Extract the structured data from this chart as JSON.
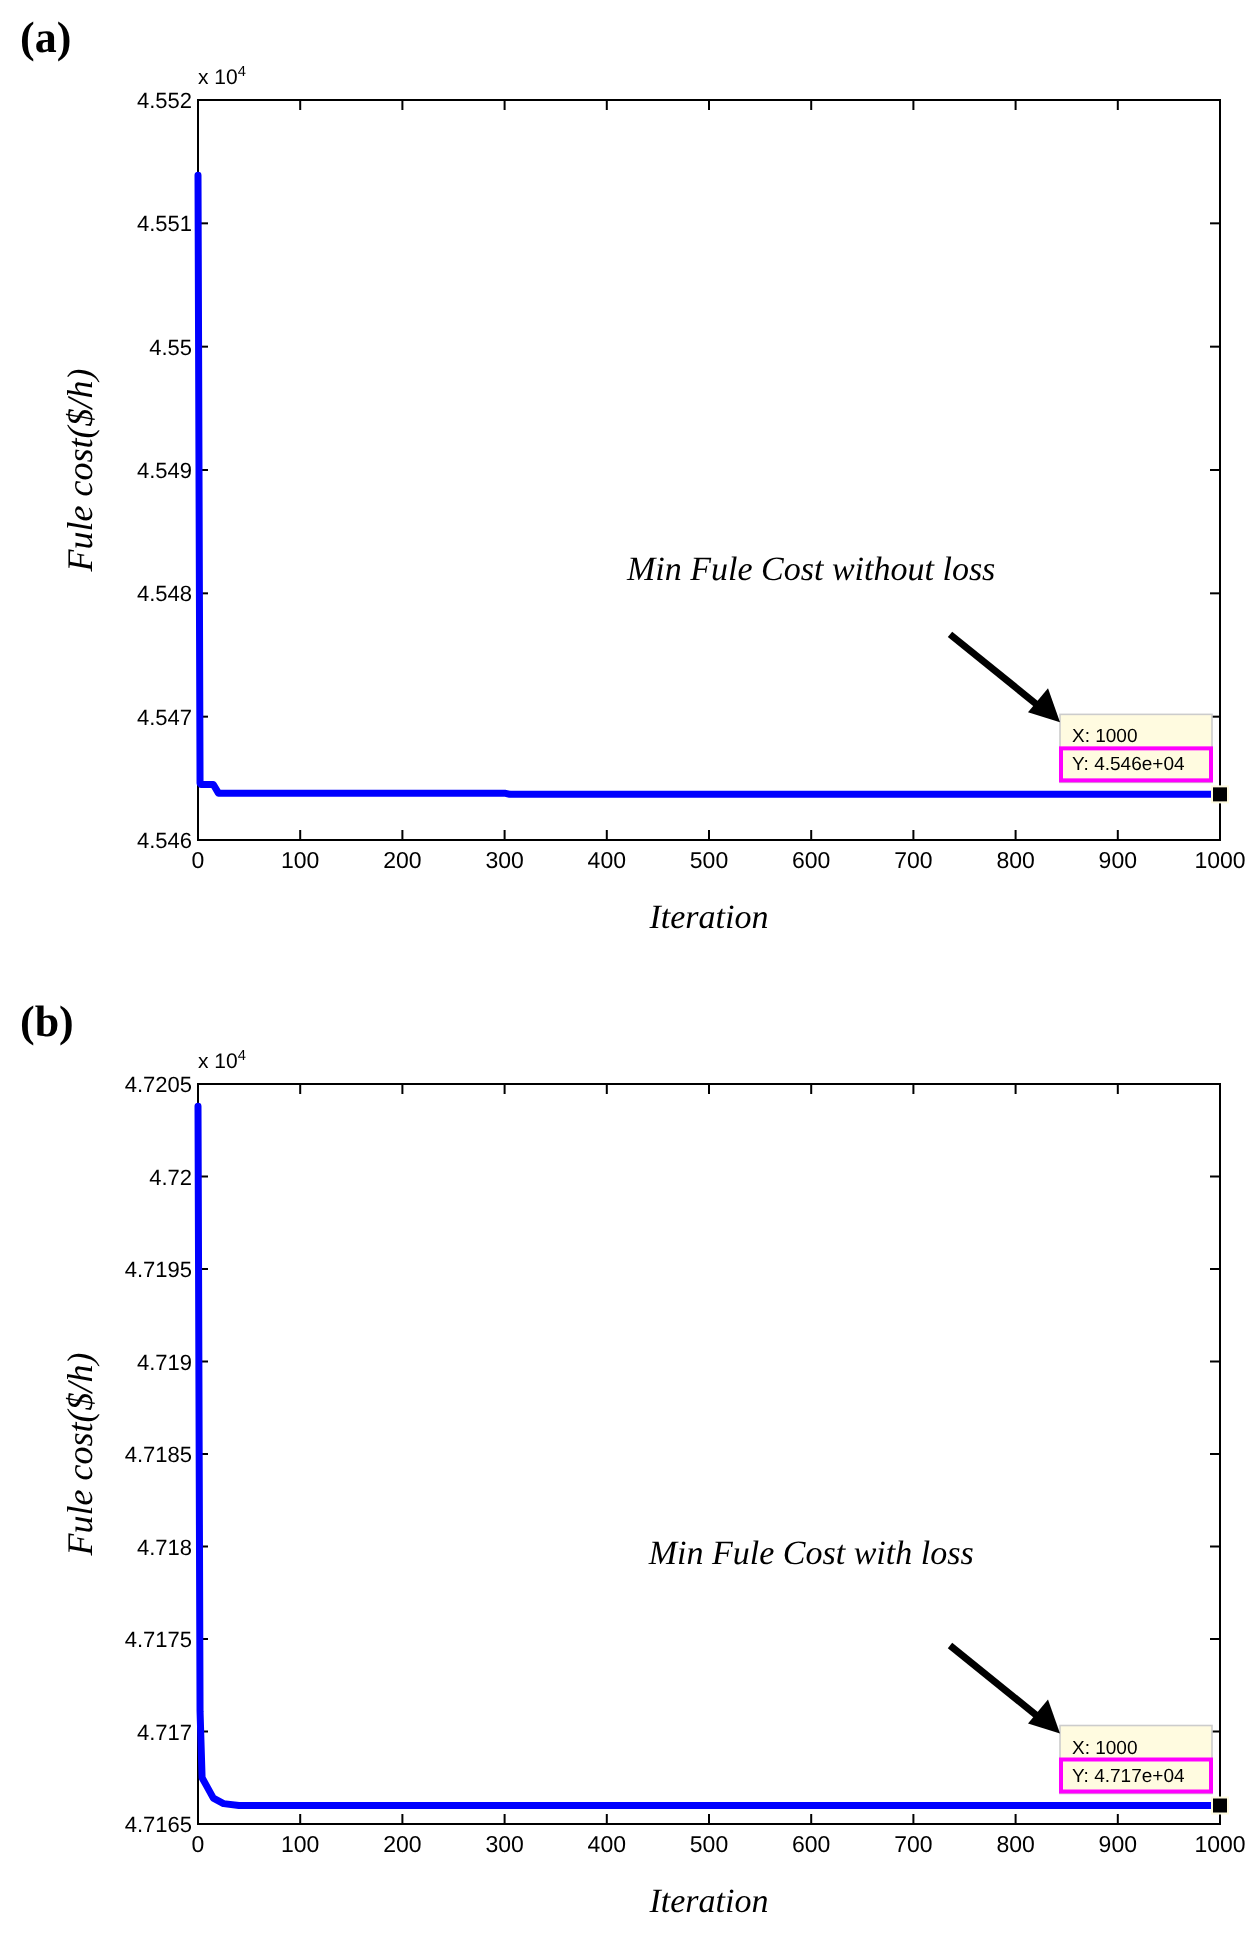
{
  "chart_data": [
    {
      "type": "line",
      "title": "(a)",
      "xlabel": "Iteration",
      "ylabel": "Fule cost($/h)",
      "series": [
        {
          "color": "#0000ff",
          "x": [
            0,
            2,
            3,
            15,
            20,
            300,
            305,
            1000
          ],
          "values": [
            4.55139,
            4.54646,
            4.54645,
            4.54645,
            4.54638,
            4.54638,
            4.54637,
            4.54637
          ]
        },
        {
          "type": "scatter",
          "marker": "square",
          "color": "#000000",
          "x": [
            1000
          ],
          "values": [
            4.54637
          ]
        }
      ],
      "xlim": [
        0,
        1000
      ],
      "xticks": [
        0,
        100,
        200,
        300,
        400,
        500,
        600,
        700,
        800,
        900,
        1000
      ],
      "ylim": [
        4.546,
        4.552
      ],
      "yticks": [
        4.546,
        4.547,
        4.548,
        4.549,
        4.55,
        4.551,
        4.552
      ],
      "annotations": [
        "x 10$^{4}$",
        "Min Fule Cost without loss",
        "X: 1000",
        "Y: 4.546e+04"
      ]
    },
    {
      "type": "line",
      "title": "(b)",
      "xlabel": "Iteration",
      "ylabel": "Fule cost($/h)",
      "series": [
        {
          "color": "#0000ff",
          "x": [
            0,
            2,
            4,
            8,
            15,
            25,
            40,
            1000
          ],
          "values": [
            4.72038,
            4.71711,
            4.71675,
            4.71671,
            4.71664,
            4.71661,
            4.7166,
            4.7166
          ]
        },
        {
          "type": "scatter",
          "marker": "square",
          "color": "#000000",
          "x": [
            1000
          ],
          "values": [
            4.7166
          ]
        }
      ],
      "xlim": [
        0,
        1000
      ],
      "xticks": [
        0,
        100,
        200,
        300,
        400,
        500,
        600,
        700,
        800,
        900,
        1000
      ],
      "ylim": [
        4.7165,
        4.7205
      ],
      "yticks": [
        4.7165,
        4.717,
        4.7175,
        4.718,
        4.7185,
        4.719,
        4.7195,
        4.72,
        4.7205
      ],
      "annotations": [
        "x 10$^{4}$",
        "Min Fule Cost with loss",
        "X: 1000",
        "Y: 4.717e+04"
      ]
    }
  ]
}
